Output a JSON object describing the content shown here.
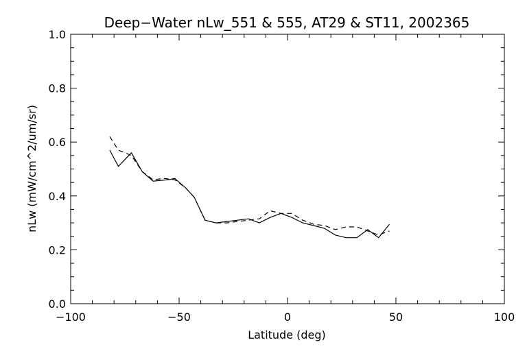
{
  "chart_data": {
    "type": "line",
    "title": "Deep−Water nLw_551 & 555, AT29 & ST11, 2002365",
    "xlabel": "Latitude (deg)",
    "ylabel": "nLw (mW/cm^2/um/sr)",
    "xlim": [
      -100,
      100
    ],
    "ylim": [
      0.0,
      1.0
    ],
    "x_ticks": [
      -100,
      -50,
      0,
      50,
      100
    ],
    "x_tick_labels": [
      "−100",
      "−50",
      "0",
      "50",
      "100"
    ],
    "y_ticks": [
      0.0,
      0.2,
      0.4,
      0.6,
      0.8,
      1.0
    ],
    "y_tick_labels": [
      "0.0",
      "0.2",
      "0.4",
      "0.6",
      "0.8",
      "1.0"
    ],
    "grid": false,
    "legend": "none",
    "series": [
      {
        "style": "solid",
        "color": "#000000",
        "x": [
          -82,
          -78,
          -72,
          -67,
          -62,
          -55,
          -52,
          -47,
          -43,
          -38,
          -33,
          -28,
          -23,
          -18,
          -13,
          -8,
          -3,
          2,
          7,
          12,
          17,
          22,
          27,
          32,
          37,
          42,
          47
        ],
        "y": [
          0.57,
          0.51,
          0.56,
          0.49,
          0.455,
          0.46,
          0.465,
          0.43,
          0.395,
          0.31,
          0.3,
          0.305,
          0.31,
          0.315,
          0.3,
          0.32,
          0.335,
          0.32,
          0.3,
          0.29,
          0.28,
          0.255,
          0.245,
          0.245,
          0.275,
          0.245,
          0.295
        ]
      },
      {
        "style": "dashed",
        "color": "#000000",
        "x": [
          -82,
          -78,
          -72,
          -67,
          -62,
          -57,
          -52,
          -47,
          -43,
          -38,
          -33,
          -28,
          -23,
          -18,
          -13,
          -8,
          -3,
          2,
          7,
          12,
          17,
          22,
          27,
          32,
          37,
          42,
          47
        ],
        "y": [
          0.62,
          0.57,
          0.55,
          0.49,
          0.46,
          0.465,
          0.46,
          0.43,
          0.395,
          0.31,
          0.3,
          0.3,
          0.305,
          0.31,
          0.315,
          0.345,
          0.335,
          0.335,
          0.31,
          0.295,
          0.29,
          0.275,
          0.285,
          0.285,
          0.27,
          0.255,
          0.27
        ]
      }
    ]
  }
}
